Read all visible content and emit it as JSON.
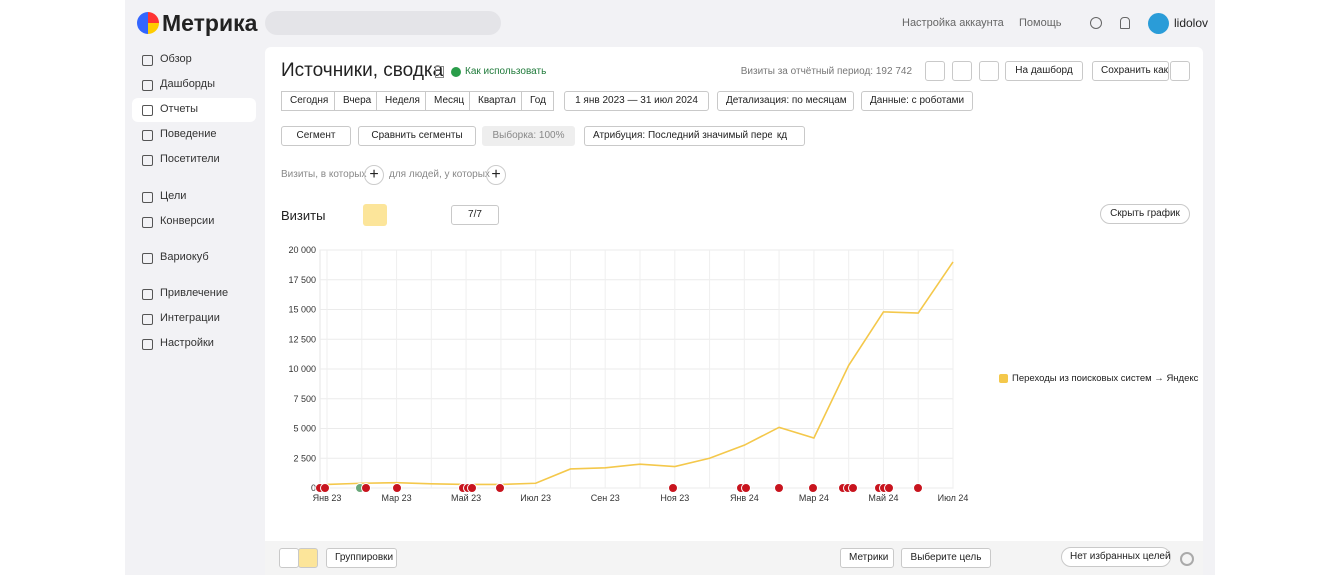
{
  "header": {
    "logo": "Метрика",
    "account_settings": "Настройка аккаунта",
    "help": "Помощь",
    "user": "lidolov"
  },
  "sidebar": {
    "items": [
      "Обзор",
      "Дашборды",
      "Отчеты",
      "Поведение",
      "Посетители",
      "Цели",
      "Конверсии",
      "Вариокуб",
      "Привлечение",
      "Интеграции",
      "Настройки"
    ]
  },
  "report": {
    "title": "Источники, сводка",
    "how_to_use": "Как использовать",
    "visits_total": "Визиты за отчётный период: 192 742",
    "to_dashboard": "На дашборд",
    "save_as": "Сохранить как",
    "periods": [
      "Сегодня",
      "Вчера",
      "Неделя",
      "Месяц",
      "Квартал",
      "Год"
    ],
    "date_range": "1 янв 2023 — 31 июл 2024",
    "detail": "Детализация: по месяцам",
    "data_mode": "Данные: с роботами",
    "segment": "Сегмент",
    "compare": "Сравнить сегменты",
    "sample": "Выборка: 100%",
    "attribution": "Атрибуция: Последний значимый переход",
    "attribution_badge": "кд",
    "filter_visits": "Визиты, в которых",
    "filter_people": "для людей, у которых",
    "metric": "Визиты",
    "series_count": "7/7",
    "hide_chart": "Скрыть график"
  },
  "footer": {
    "groupings": "Группировки",
    "metrics": "Метрики",
    "choose_goal": "Выберите цель",
    "no_goals": "Нет избранных целей"
  },
  "chart_data": {
    "type": "line",
    "categories": [
      "Янв 23",
      null,
      "Мар 23",
      null,
      "Май 23",
      null,
      "Июл 23",
      null,
      "Сен 23",
      null,
      "Ноя 23",
      null,
      "Янв 24",
      null,
      "Мар 24",
      null,
      "Май 24",
      null,
      "Июл 24"
    ],
    "series": [
      {
        "name": "Переходы из поисковых систем → Яндекс",
        "color": "#f4c84b",
        "values": [
          300,
          400,
          450,
          350,
          300,
          300,
          400,
          1600,
          1700,
          2000,
          1800,
          2500,
          3600,
          5100,
          4200,
          10300,
          14800,
          14700,
          19000
        ]
      }
    ],
    "ylim": [
      0,
      20000
    ],
    "yticks": [
      0,
      {
        "value": 2500,
        "label": "2 500"
      },
      {
        "value": 5000,
        "label": "5 000"
      },
      {
        "value": 7500,
        "label": "7 500"
      },
      {
        "value": 10000,
        "label": "10 000"
      },
      {
        "value": 12500,
        "label": "12 500"
      },
      {
        "value": 15000,
        "label": "15 000"
      },
      {
        "value": 17500,
        "label": "17 500"
      },
      {
        "value": 20000,
        "label": "20 000"
      }
    ],
    "grid": true
  }
}
